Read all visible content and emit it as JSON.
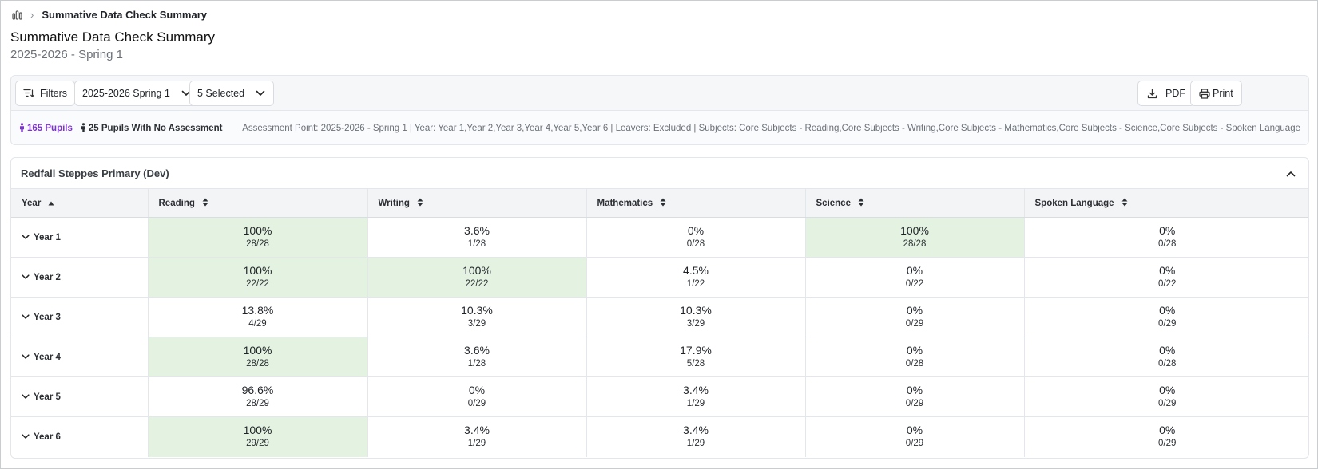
{
  "breadcrumb": {
    "icon": "bar-chart-icon",
    "separator": "›",
    "current": "Summative Data Check Summary"
  },
  "page": {
    "title": "Summative Data Check Summary",
    "subtitle": "2025-2026 - Spring 1"
  },
  "toolbar": {
    "filters_label": "Filters",
    "term_select": "2025-2026 Spring 1",
    "subjects_select": "5 Selected",
    "pdf_label": "PDF",
    "print_label": "Print"
  },
  "summary": {
    "pupils": "165 Pupils",
    "no_assessment": "25 Pupils With No Assessment",
    "criteria": "Assessment Point: 2025-2026 - Spring 1 | Year: Year 1,Year 2,Year 3,Year 4,Year 5,Year 6 | Leavers: Excluded | Subjects: Core Subjects - Reading,Core Subjects - Writing,Core Subjects - Mathematics,Core Subjects - Science,Core Subjects - Spoken Language"
  },
  "school": {
    "name": "Redfall Steppes Primary (Dev)",
    "columns": [
      "Year",
      "Reading",
      "Writing",
      "Mathematics",
      "Science",
      "Spoken Language"
    ],
    "highlight_color": "#e4f3e1",
    "rows": [
      {
        "year": "Year 1",
        "cells": [
          {
            "pct": "100%",
            "frac": "28/28",
            "highlight": true
          },
          {
            "pct": "3.6%",
            "frac": "1/28",
            "highlight": false
          },
          {
            "pct": "0%",
            "frac": "0/28",
            "highlight": false
          },
          {
            "pct": "100%",
            "frac": "28/28",
            "highlight": true
          },
          {
            "pct": "0%",
            "frac": "0/28",
            "highlight": false
          }
        ]
      },
      {
        "year": "Year 2",
        "cells": [
          {
            "pct": "100%",
            "frac": "22/22",
            "highlight": true
          },
          {
            "pct": "100%",
            "frac": "22/22",
            "highlight": true
          },
          {
            "pct": "4.5%",
            "frac": "1/22",
            "highlight": false
          },
          {
            "pct": "0%",
            "frac": "0/22",
            "highlight": false
          },
          {
            "pct": "0%",
            "frac": "0/22",
            "highlight": false
          }
        ]
      },
      {
        "year": "Year 3",
        "cells": [
          {
            "pct": "13.8%",
            "frac": "4/29",
            "highlight": false
          },
          {
            "pct": "10.3%",
            "frac": "3/29",
            "highlight": false
          },
          {
            "pct": "10.3%",
            "frac": "3/29",
            "highlight": false
          },
          {
            "pct": "0%",
            "frac": "0/29",
            "highlight": false
          },
          {
            "pct": "0%",
            "frac": "0/29",
            "highlight": false
          }
        ]
      },
      {
        "year": "Year 4",
        "cells": [
          {
            "pct": "100%",
            "frac": "28/28",
            "highlight": true
          },
          {
            "pct": "3.6%",
            "frac": "1/28",
            "highlight": false
          },
          {
            "pct": "17.9%",
            "frac": "5/28",
            "highlight": false
          },
          {
            "pct": "0%",
            "frac": "0/28",
            "highlight": false
          },
          {
            "pct": "0%",
            "frac": "0/28",
            "highlight": false
          }
        ]
      },
      {
        "year": "Year 5",
        "cells": [
          {
            "pct": "96.6%",
            "frac": "28/29",
            "highlight": false
          },
          {
            "pct": "0%",
            "frac": "0/29",
            "highlight": false
          },
          {
            "pct": "3.4%",
            "frac": "1/29",
            "highlight": false
          },
          {
            "pct": "0%",
            "frac": "0/29",
            "highlight": false
          },
          {
            "pct": "0%",
            "frac": "0/29",
            "highlight": false
          }
        ]
      },
      {
        "year": "Year 6",
        "cells": [
          {
            "pct": "100%",
            "frac": "29/29",
            "highlight": true
          },
          {
            "pct": "3.4%",
            "frac": "1/29",
            "highlight": false
          },
          {
            "pct": "3.4%",
            "frac": "1/29",
            "highlight": false
          },
          {
            "pct": "0%",
            "frac": "0/29",
            "highlight": false
          },
          {
            "pct": "0%",
            "frac": "0/29",
            "highlight": false
          }
        ]
      }
    ]
  }
}
